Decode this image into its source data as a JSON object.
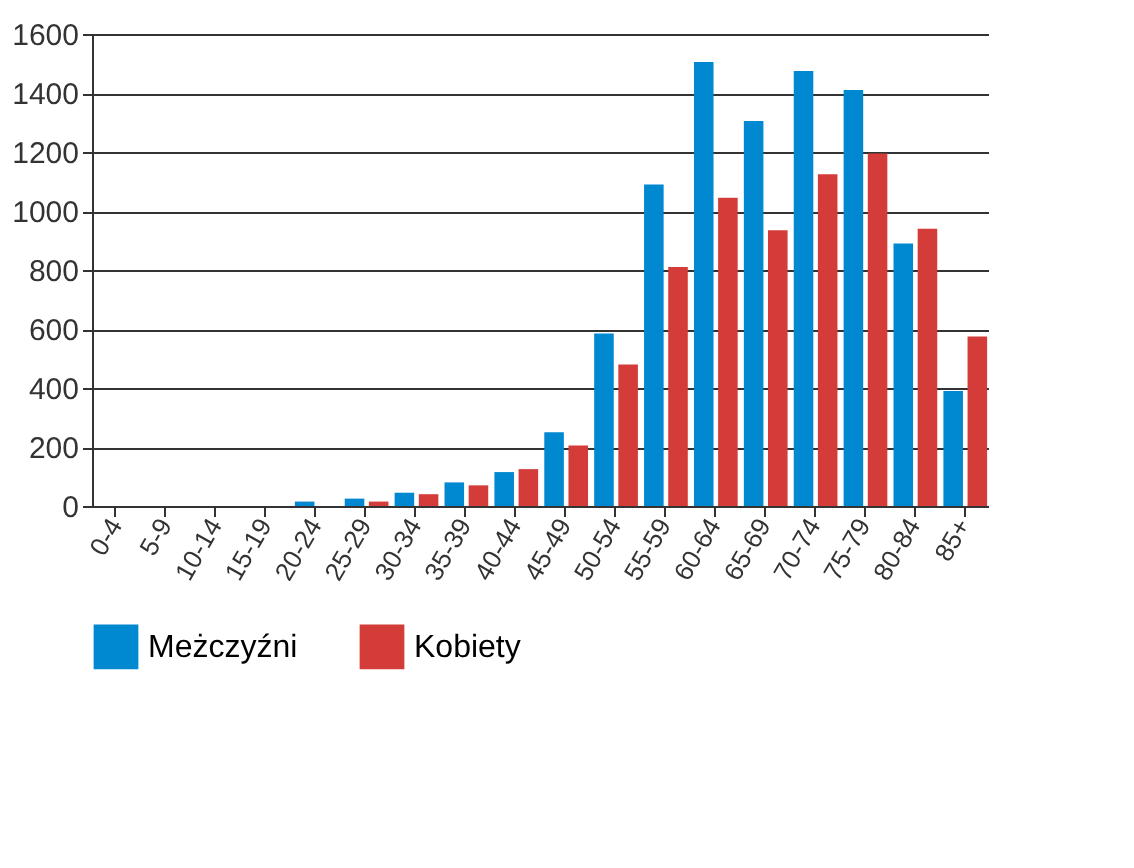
{
  "chart_data": {
    "type": "bar",
    "categories": [
      "0-4",
      "5-9",
      "10-14",
      "15-19",
      "20-24",
      "25-29",
      "30-34",
      "35-39",
      "40-44",
      "45-49",
      "50-54",
      "55-59",
      "60-64",
      "65-69",
      "70-74",
      "75-79",
      "80-84",
      "85+"
    ],
    "series": [
      {
        "name": "Meżczyźni",
        "color": "#0088d0",
        "values": [
          0,
          0,
          0,
          0,
          15,
          25,
          45,
          80,
          115,
          250,
          585,
          1090,
          1505,
          1305,
          1475,
          1410,
          890,
          390
        ]
      },
      {
        "name": "Kobiety",
        "color": "#d33c38",
        "values": [
          0,
          0,
          0,
          0,
          0,
          15,
          40,
          70,
          125,
          205,
          480,
          810,
          1045,
          935,
          1125,
          1195,
          940,
          575
        ]
      }
    ],
    "ylim": [
      0,
      1600
    ],
    "yticks": [
      0,
      200,
      400,
      600,
      800,
      1000,
      1200,
      1400,
      1600
    ],
    "grid": "y",
    "legend": "bottom"
  }
}
